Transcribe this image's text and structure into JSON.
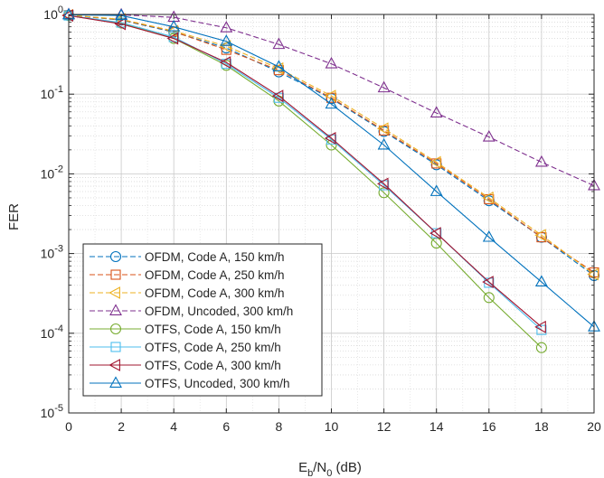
{
  "chart_data": {
    "type": "line",
    "xlabel": {
      "base": "E",
      "sub1": "b",
      "mid": "/N",
      "sub2": "0",
      "tail": " (dB)"
    },
    "ylabel": "FER",
    "xlim": [
      0,
      20
    ],
    "ylim": [
      1e-05,
      1
    ],
    "y_scale": "log",
    "grid": true,
    "legend_position": "bottom-left",
    "x_ticks": [
      "0",
      "2",
      "4",
      "6",
      "8",
      "10",
      "12",
      "14",
      "16",
      "18",
      "20"
    ],
    "y_ticks": [
      {
        "base": "10",
        "exp": "0"
      },
      {
        "base": "10",
        "exp": "-1"
      },
      {
        "base": "10",
        "exp": "-2"
      },
      {
        "base": "10",
        "exp": "-3"
      },
      {
        "base": "10",
        "exp": "-4"
      },
      {
        "base": "10",
        "exp": "-5"
      }
    ],
    "series": [
      {
        "name": "OFDM, Code A, 150 km/h",
        "color": "#0072BD",
        "marker": "circle",
        "dash": "dashed",
        "x": [
          0,
          2,
          4,
          6,
          8,
          10,
          12,
          14,
          16,
          18,
          20
        ],
        "y": [
          0.98,
          0.85,
          0.6,
          0.38,
          0.19,
          0.088,
          0.034,
          0.013,
          0.0046,
          0.0016,
          0.00053
        ]
      },
      {
        "name": "OFDM, Code A, 250 km/h",
        "color": "#D95319",
        "marker": "square",
        "dash": "dashed",
        "x": [
          0,
          2,
          4,
          6,
          8,
          10,
          12,
          14,
          16,
          18,
          20
        ],
        "y": [
          0.98,
          0.86,
          0.61,
          0.36,
          0.2,
          0.09,
          0.035,
          0.0135,
          0.0048,
          0.0016,
          0.00058
        ]
      },
      {
        "name": "OFDM, Code A, 300 km/h",
        "color": "#EDB120",
        "marker": "triangle-left",
        "dash": "dashed",
        "x": [
          0,
          2,
          4,
          6,
          8,
          10,
          12,
          14,
          16,
          18,
          20
        ],
        "y": [
          0.98,
          0.87,
          0.62,
          0.4,
          0.21,
          0.095,
          0.037,
          0.014,
          0.005,
          0.0017,
          0.00055
        ]
      },
      {
        "name": "OFDM, Uncoded, 300 km/h",
        "color": "#7E2F8E",
        "marker": "triangle-up",
        "dash": "dashed",
        "x": [
          0,
          2,
          4,
          6,
          8,
          10,
          12,
          14,
          16,
          18,
          20
        ],
        "y": [
          1.0,
          0.99,
          0.92,
          0.68,
          0.42,
          0.24,
          0.12,
          0.058,
          0.029,
          0.014,
          0.0071
        ]
      },
      {
        "name": "OTFS, Code A, 150 km/h",
        "color": "#77AC30",
        "marker": "circle",
        "dash": "solid",
        "x": [
          0,
          2,
          4,
          6,
          8,
          10,
          12,
          14,
          16,
          18
        ],
        "y": [
          0.97,
          0.78,
          0.5,
          0.23,
          0.082,
          0.023,
          0.0058,
          0.00135,
          0.00028,
          6.6e-05
        ]
      },
      {
        "name": "OTFS, Code A, 250 km/h",
        "color": "#4DBEEE",
        "marker": "square",
        "dash": "solid",
        "x": [
          0,
          2,
          4,
          6,
          8,
          10,
          12,
          14,
          16,
          18
        ],
        "y": [
          0.97,
          0.79,
          0.52,
          0.24,
          0.09,
          0.027,
          0.0072,
          0.0018,
          0.00043,
          0.00011
        ]
      },
      {
        "name": "OTFS, Code A, 300 km/h",
        "color": "#A2142F",
        "marker": "triangle-left",
        "dash": "solid",
        "x": [
          0,
          2,
          4,
          6,
          8,
          10,
          12,
          14,
          16,
          18
        ],
        "y": [
          0.97,
          0.76,
          0.5,
          0.25,
          0.095,
          0.028,
          0.0075,
          0.0018,
          0.00044,
          0.00012
        ]
      },
      {
        "name": "OTFS, Uncoded, 300 km/h",
        "color": "#0072BD",
        "marker": "triangle-up",
        "dash": "solid",
        "x": [
          0,
          2,
          4,
          6,
          8,
          10,
          12,
          14,
          16,
          18,
          20
        ],
        "y": [
          0.99,
          0.97,
          0.7,
          0.46,
          0.22,
          0.075,
          0.023,
          0.006,
          0.0016,
          0.00044,
          0.00012
        ]
      }
    ]
  }
}
